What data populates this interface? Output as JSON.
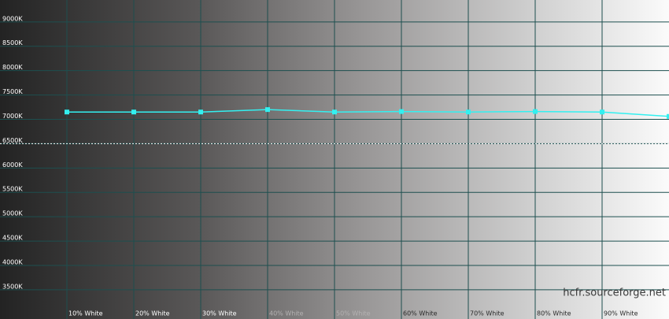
{
  "chart_data": {
    "type": "line",
    "categories": [
      "10% White",
      "20% White",
      "30% White",
      "40% White",
      "50% White",
      "60% White",
      "70% White",
      "80% White",
      "90% White",
      null
    ],
    "series": [
      {
        "color": "#33f0f0",
        "values": [
          7150,
          7150,
          7150,
          7200,
          7150,
          7160,
          7150,
          7160,
          7150,
          7060
        ]
      }
    ],
    "reference": 6500,
    "ylim": [
      2900,
      9450
    ],
    "yticks": [
      {
        "value": 3500,
        "label": "3500K"
      },
      {
        "value": 4000,
        "label": "4000K"
      },
      {
        "value": 4500,
        "label": "4500K"
      },
      {
        "value": 5000,
        "label": "5000K"
      },
      {
        "value": 5500,
        "label": "5500K"
      },
      {
        "value": 6000,
        "label": "6000K"
      },
      {
        "value": 6500,
        "label": "6500K"
      },
      {
        "value": 7000,
        "label": "7000K"
      },
      {
        "value": 7500,
        "label": "7500K"
      },
      {
        "value": 8000,
        "label": "8000K"
      },
      {
        "value": 8500,
        "label": "8500K"
      },
      {
        "value": 9000,
        "label": "9000K"
      }
    ],
    "grid": true,
    "watermark": "hcfr.sourceforge.net"
  }
}
